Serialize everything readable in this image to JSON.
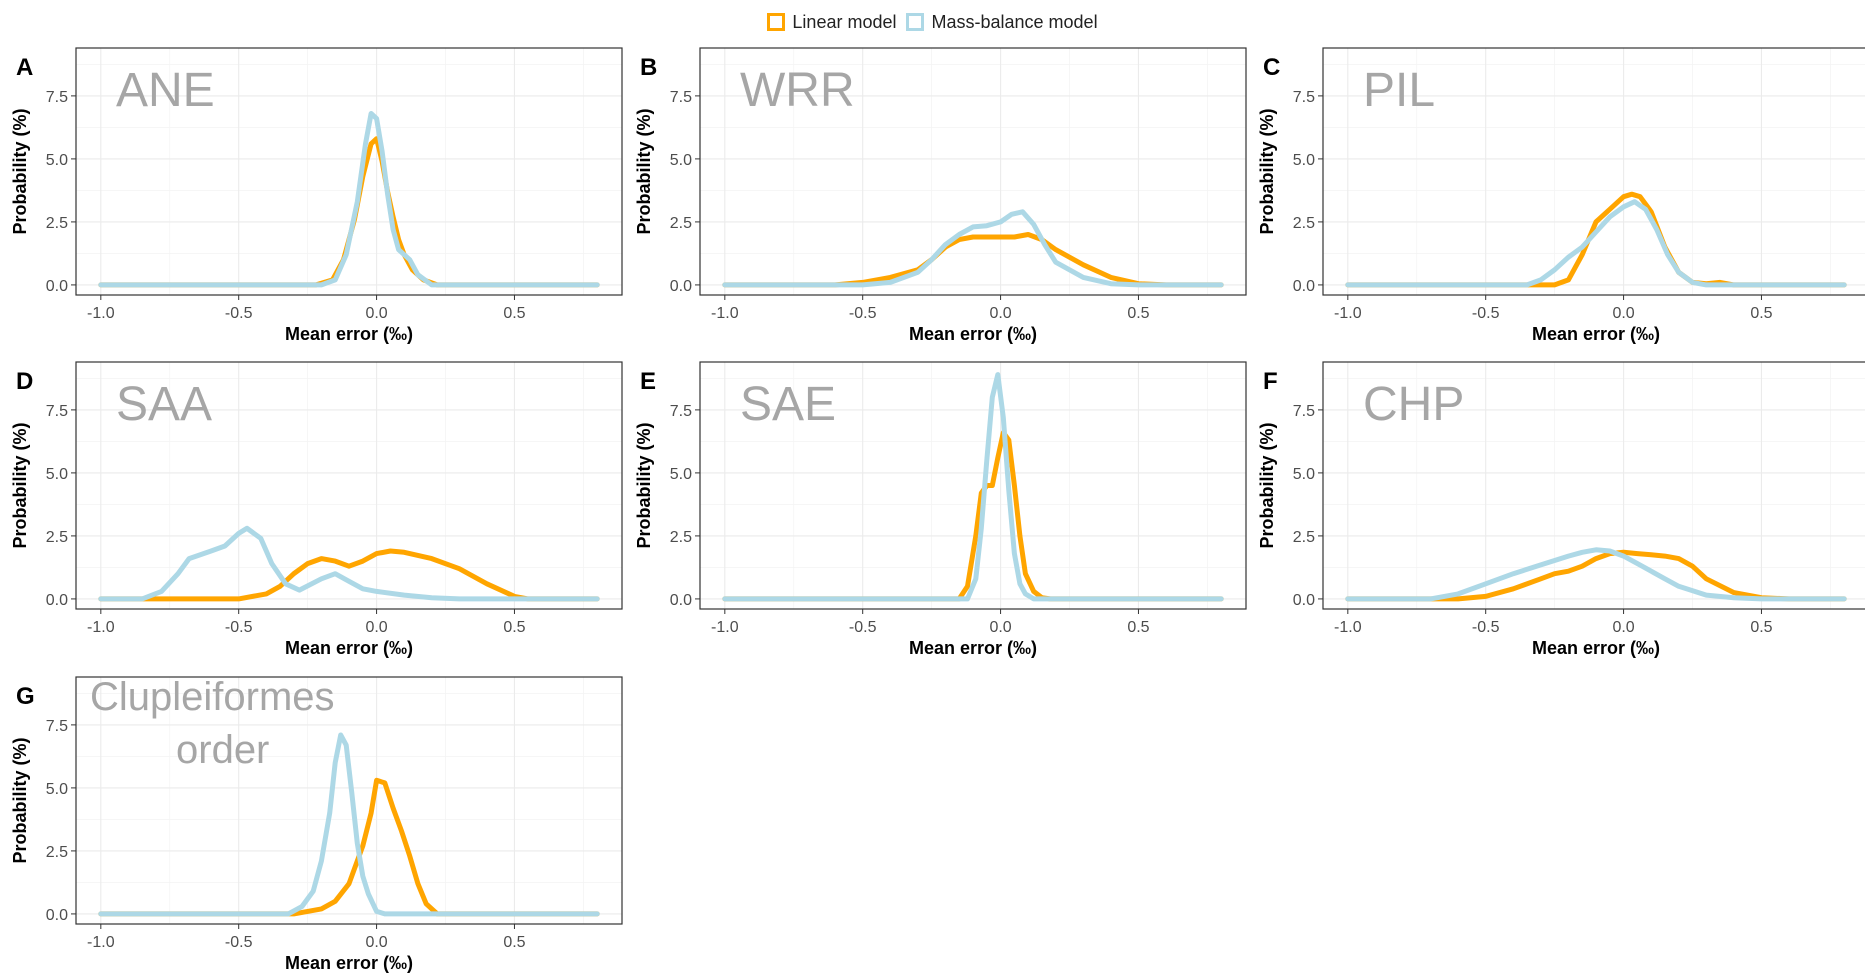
{
  "colors": {
    "linear": "#FFA500",
    "mass_balance": "#ADD8E6"
  },
  "legend": {
    "items": [
      {
        "label": "Linear model",
        "color": "#FFA500"
      },
      {
        "label": "Mass-balance model",
        "color": "#ADD8E6"
      }
    ]
  },
  "chart_data": [
    {
      "panel": "A",
      "label_lines": [
        "ANE"
      ],
      "type": "line",
      "xlabel": "Mean error (‰)",
      "ylabel": "Probability (%)",
      "xlim": [
        -1.09,
        0.89
      ],
      "ylim": [
        -0.4,
        9.4
      ],
      "xticks": [
        "-1.0",
        "-0.5",
        "0.0",
        "0.5"
      ],
      "yticks": [
        "0.0",
        "2.5",
        "5.0",
        "7.5"
      ],
      "grid": true,
      "series": [
        {
          "name": "Linear model",
          "x": [
            -1.0,
            -0.22,
            -0.16,
            -0.12,
            -0.08,
            -0.05,
            -0.02,
            0.0,
            0.02,
            0.04,
            0.06,
            0.08,
            0.1,
            0.13,
            0.17,
            0.22,
            0.8
          ],
          "y": [
            0,
            0,
            0.2,
            1.0,
            2.6,
            4.3,
            5.6,
            5.8,
            4.9,
            3.7,
            2.7,
            1.8,
            1.2,
            0.6,
            0.2,
            0,
            0
          ]
        },
        {
          "name": "Mass-balance model",
          "x": [
            -1.0,
            -0.2,
            -0.15,
            -0.11,
            -0.07,
            -0.04,
            -0.02,
            0.0,
            0.02,
            0.04,
            0.06,
            0.08,
            0.1,
            0.12,
            0.15,
            0.2,
            0.8
          ],
          "y": [
            0,
            0,
            0.2,
            1.2,
            3.3,
            5.6,
            6.8,
            6.6,
            5.3,
            3.6,
            2.2,
            1.4,
            1.2,
            1.0,
            0.4,
            0,
            0
          ]
        }
      ]
    },
    {
      "panel": "B",
      "label_lines": [
        "WRR"
      ],
      "type": "line",
      "xlabel": "Mean error (‰)",
      "ylabel": "Probability (%)",
      "xlim": [
        -1.09,
        0.89
      ],
      "ylim": [
        -0.4,
        9.4
      ],
      "xticks": [
        "-1.0",
        "-0.5",
        "0.0",
        "0.5"
      ],
      "yticks": [
        "0.0",
        "2.5",
        "5.0",
        "7.5"
      ],
      "grid": true,
      "series": [
        {
          "name": "Linear model",
          "x": [
            -1.0,
            -0.6,
            -0.5,
            -0.4,
            -0.3,
            -0.25,
            -0.2,
            -0.15,
            -0.1,
            0.0,
            0.05,
            0.1,
            0.15,
            0.2,
            0.3,
            0.4,
            0.5,
            0.6,
            0.8
          ],
          "y": [
            0,
            0,
            0.1,
            0.3,
            0.6,
            1.0,
            1.5,
            1.8,
            1.9,
            1.9,
            1.9,
            2.0,
            1.8,
            1.4,
            0.8,
            0.3,
            0.05,
            0,
            0
          ]
        },
        {
          "name": "Mass-balance model",
          "x": [
            -1.0,
            -0.5,
            -0.4,
            -0.3,
            -0.25,
            -0.2,
            -0.15,
            -0.1,
            -0.05,
            0.0,
            0.04,
            0.08,
            0.12,
            0.16,
            0.2,
            0.3,
            0.4,
            0.5,
            0.8
          ],
          "y": [
            0,
            0,
            0.1,
            0.5,
            1.0,
            1.6,
            2.0,
            2.3,
            2.35,
            2.5,
            2.8,
            2.9,
            2.4,
            1.6,
            0.9,
            0.3,
            0.05,
            0,
            0
          ]
        }
      ]
    },
    {
      "panel": "C",
      "label_lines": [
        "PIL"
      ],
      "type": "line",
      "xlabel": "Mean error (‰)",
      "ylabel": "Probability (%)",
      "xlim": [
        -1.09,
        0.89
      ],
      "ylim": [
        -0.4,
        9.4
      ],
      "xticks": [
        "-1.0",
        "-0.5",
        "0.0",
        "0.5"
      ],
      "yticks": [
        "0.0",
        "2.5",
        "5.0",
        "7.5"
      ],
      "grid": true,
      "series": [
        {
          "name": "Linear model",
          "x": [
            -1.0,
            -0.25,
            -0.2,
            -0.15,
            -0.1,
            -0.05,
            0.0,
            0.03,
            0.06,
            0.1,
            0.15,
            0.2,
            0.25,
            0.3,
            0.35,
            0.4,
            0.8
          ],
          "y": [
            0,
            0,
            0.2,
            1.2,
            2.5,
            3.0,
            3.5,
            3.6,
            3.5,
            2.9,
            1.5,
            0.5,
            0.1,
            0.05,
            0.1,
            0,
            0
          ]
        },
        {
          "name": "Mass-balance model",
          "x": [
            -1.0,
            -0.35,
            -0.3,
            -0.25,
            -0.2,
            -0.15,
            -0.1,
            -0.05,
            0.0,
            0.04,
            0.08,
            0.12,
            0.16,
            0.2,
            0.25,
            0.3,
            0.8
          ],
          "y": [
            0,
            0,
            0.2,
            0.6,
            1.1,
            1.5,
            2.1,
            2.7,
            3.1,
            3.3,
            3.0,
            2.2,
            1.2,
            0.5,
            0.1,
            0,
            0
          ]
        }
      ]
    },
    {
      "panel": "D",
      "label_lines": [
        "SAA"
      ],
      "type": "line",
      "xlabel": "Mean error (‰)",
      "ylabel": "Probability (%)",
      "xlim": [
        -1.09,
        0.89
      ],
      "ylim": [
        -0.4,
        9.4
      ],
      "xticks": [
        "-1.0",
        "-0.5",
        "0.0",
        "0.5"
      ],
      "yticks": [
        "0.0",
        "2.5",
        "5.0",
        "7.5"
      ],
      "grid": true,
      "series": [
        {
          "name": "Linear model",
          "x": [
            -1.0,
            -0.5,
            -0.4,
            -0.35,
            -0.3,
            -0.25,
            -0.2,
            -0.15,
            -0.1,
            -0.05,
            0.0,
            0.05,
            0.1,
            0.2,
            0.3,
            0.4,
            0.5,
            0.55,
            0.8
          ],
          "y": [
            0,
            0,
            0.2,
            0.5,
            1.0,
            1.4,
            1.6,
            1.5,
            1.3,
            1.5,
            1.8,
            1.9,
            1.85,
            1.6,
            1.2,
            0.6,
            0.1,
            0,
            0
          ]
        },
        {
          "name": "Mass-balance model",
          "x": [
            -1.0,
            -0.85,
            -0.78,
            -0.72,
            -0.68,
            -0.6,
            -0.55,
            -0.5,
            -0.47,
            -0.42,
            -0.38,
            -0.33,
            -0.28,
            -0.2,
            -0.15,
            -0.1,
            -0.05,
            0.0,
            0.1,
            0.2,
            0.3,
            0.8
          ],
          "y": [
            0,
            0,
            0.3,
            1.0,
            1.6,
            1.9,
            2.1,
            2.6,
            2.8,
            2.4,
            1.4,
            0.6,
            0.35,
            0.8,
            1.0,
            0.7,
            0.4,
            0.3,
            0.15,
            0.05,
            0,
            0
          ]
        }
      ]
    },
    {
      "panel": "E",
      "label_lines": [
        "SAE"
      ],
      "type": "line",
      "xlabel": "Mean error (‰)",
      "ylabel": "Probability (%)",
      "xlim": [
        -1.09,
        0.89
      ],
      "ylim": [
        -0.4,
        9.4
      ],
      "xticks": [
        "-1.0",
        "-0.5",
        "0.0",
        "0.5"
      ],
      "yticks": [
        "0.0",
        "2.5",
        "5.0",
        "7.5"
      ],
      "grid": true,
      "series": [
        {
          "name": "Linear model",
          "x": [
            -1.0,
            -0.15,
            -0.12,
            -0.09,
            -0.07,
            -0.05,
            -0.03,
            -0.01,
            0.01,
            0.03,
            0.05,
            0.07,
            0.09,
            0.12,
            0.15,
            0.18,
            0.8
          ],
          "y": [
            0,
            0,
            0.5,
            2.5,
            4.2,
            4.5,
            4.5,
            5.6,
            6.6,
            6.3,
            4.5,
            2.5,
            1.0,
            0.3,
            0.05,
            0,
            0
          ]
        },
        {
          "name": "Mass-balance model",
          "x": [
            -1.0,
            -0.12,
            -0.09,
            -0.07,
            -0.05,
            -0.03,
            -0.01,
            0.01,
            0.03,
            0.05,
            0.07,
            0.09,
            0.12,
            0.8
          ],
          "y": [
            0,
            0,
            0.8,
            2.8,
            5.5,
            8.0,
            8.9,
            7.2,
            4.3,
            1.8,
            0.6,
            0.2,
            0,
            0
          ]
        }
      ]
    },
    {
      "panel": "F",
      "label_lines": [
        "CHP"
      ],
      "type": "line",
      "xlabel": "Mean error (‰)",
      "ylabel": "Probability (%)",
      "xlim": [
        -1.09,
        0.89
      ],
      "ylim": [
        -0.4,
        9.4
      ],
      "xticks": [
        "-1.0",
        "-0.5",
        "0.0",
        "0.5"
      ],
      "yticks": [
        "0.0",
        "2.5",
        "5.0",
        "7.5"
      ],
      "grid": true,
      "series": [
        {
          "name": "Linear model",
          "x": [
            -1.0,
            -0.6,
            -0.5,
            -0.4,
            -0.3,
            -0.25,
            -0.2,
            -0.15,
            -0.1,
            -0.05,
            0.0,
            0.05,
            0.1,
            0.15,
            0.2,
            0.25,
            0.3,
            0.4,
            0.5,
            0.6,
            0.8
          ],
          "y": [
            0,
            0,
            0.1,
            0.4,
            0.8,
            1.0,
            1.1,
            1.3,
            1.6,
            1.8,
            1.85,
            1.8,
            1.75,
            1.7,
            1.6,
            1.3,
            0.8,
            0.25,
            0.05,
            0,
            0
          ]
        },
        {
          "name": "Mass-balance model",
          "x": [
            -1.0,
            -0.7,
            -0.6,
            -0.5,
            -0.4,
            -0.3,
            -0.2,
            -0.15,
            -0.1,
            -0.05,
            0.0,
            0.05,
            0.1,
            0.15,
            0.2,
            0.3,
            0.4,
            0.5,
            0.8
          ],
          "y": [
            0,
            0,
            0.2,
            0.6,
            1.0,
            1.35,
            1.7,
            1.85,
            1.95,
            1.9,
            1.7,
            1.4,
            1.1,
            0.8,
            0.5,
            0.15,
            0.05,
            0,
            0
          ]
        }
      ]
    },
    {
      "panel": "G",
      "label_lines": [
        "Clupleiformes",
        "order"
      ],
      "type": "line",
      "xlabel": "Mean error (‰)",
      "ylabel": "Probability (%)",
      "xlim": [
        -1.09,
        0.89
      ],
      "ylim": [
        -0.4,
        9.4
      ],
      "xticks": [
        "-1.0",
        "-0.5",
        "0.0",
        "0.5"
      ],
      "yticks": [
        "0.0",
        "2.5",
        "5.0",
        "7.5"
      ],
      "grid": true,
      "series": [
        {
          "name": "Linear model",
          "x": [
            -1.0,
            -0.3,
            -0.2,
            -0.15,
            -0.1,
            -0.05,
            -0.02,
            0.0,
            0.03,
            0.06,
            0.09,
            0.12,
            0.15,
            0.18,
            0.22,
            0.8
          ],
          "y": [
            0,
            0,
            0.2,
            0.5,
            1.2,
            2.7,
            4.0,
            5.3,
            5.2,
            4.2,
            3.3,
            2.3,
            1.2,
            0.4,
            0,
            0
          ]
        },
        {
          "name": "Mass-balance model",
          "x": [
            -1.0,
            -0.32,
            -0.27,
            -0.23,
            -0.2,
            -0.17,
            -0.15,
            -0.13,
            -0.11,
            -0.09,
            -0.07,
            -0.05,
            -0.03,
            0.0,
            0.03,
            0.8
          ],
          "y": [
            0,
            0,
            0.3,
            0.9,
            2.1,
            4.0,
            6.0,
            7.1,
            6.7,
            4.8,
            2.8,
            1.5,
            0.8,
            0.1,
            0,
            0
          ]
        }
      ]
    }
  ]
}
